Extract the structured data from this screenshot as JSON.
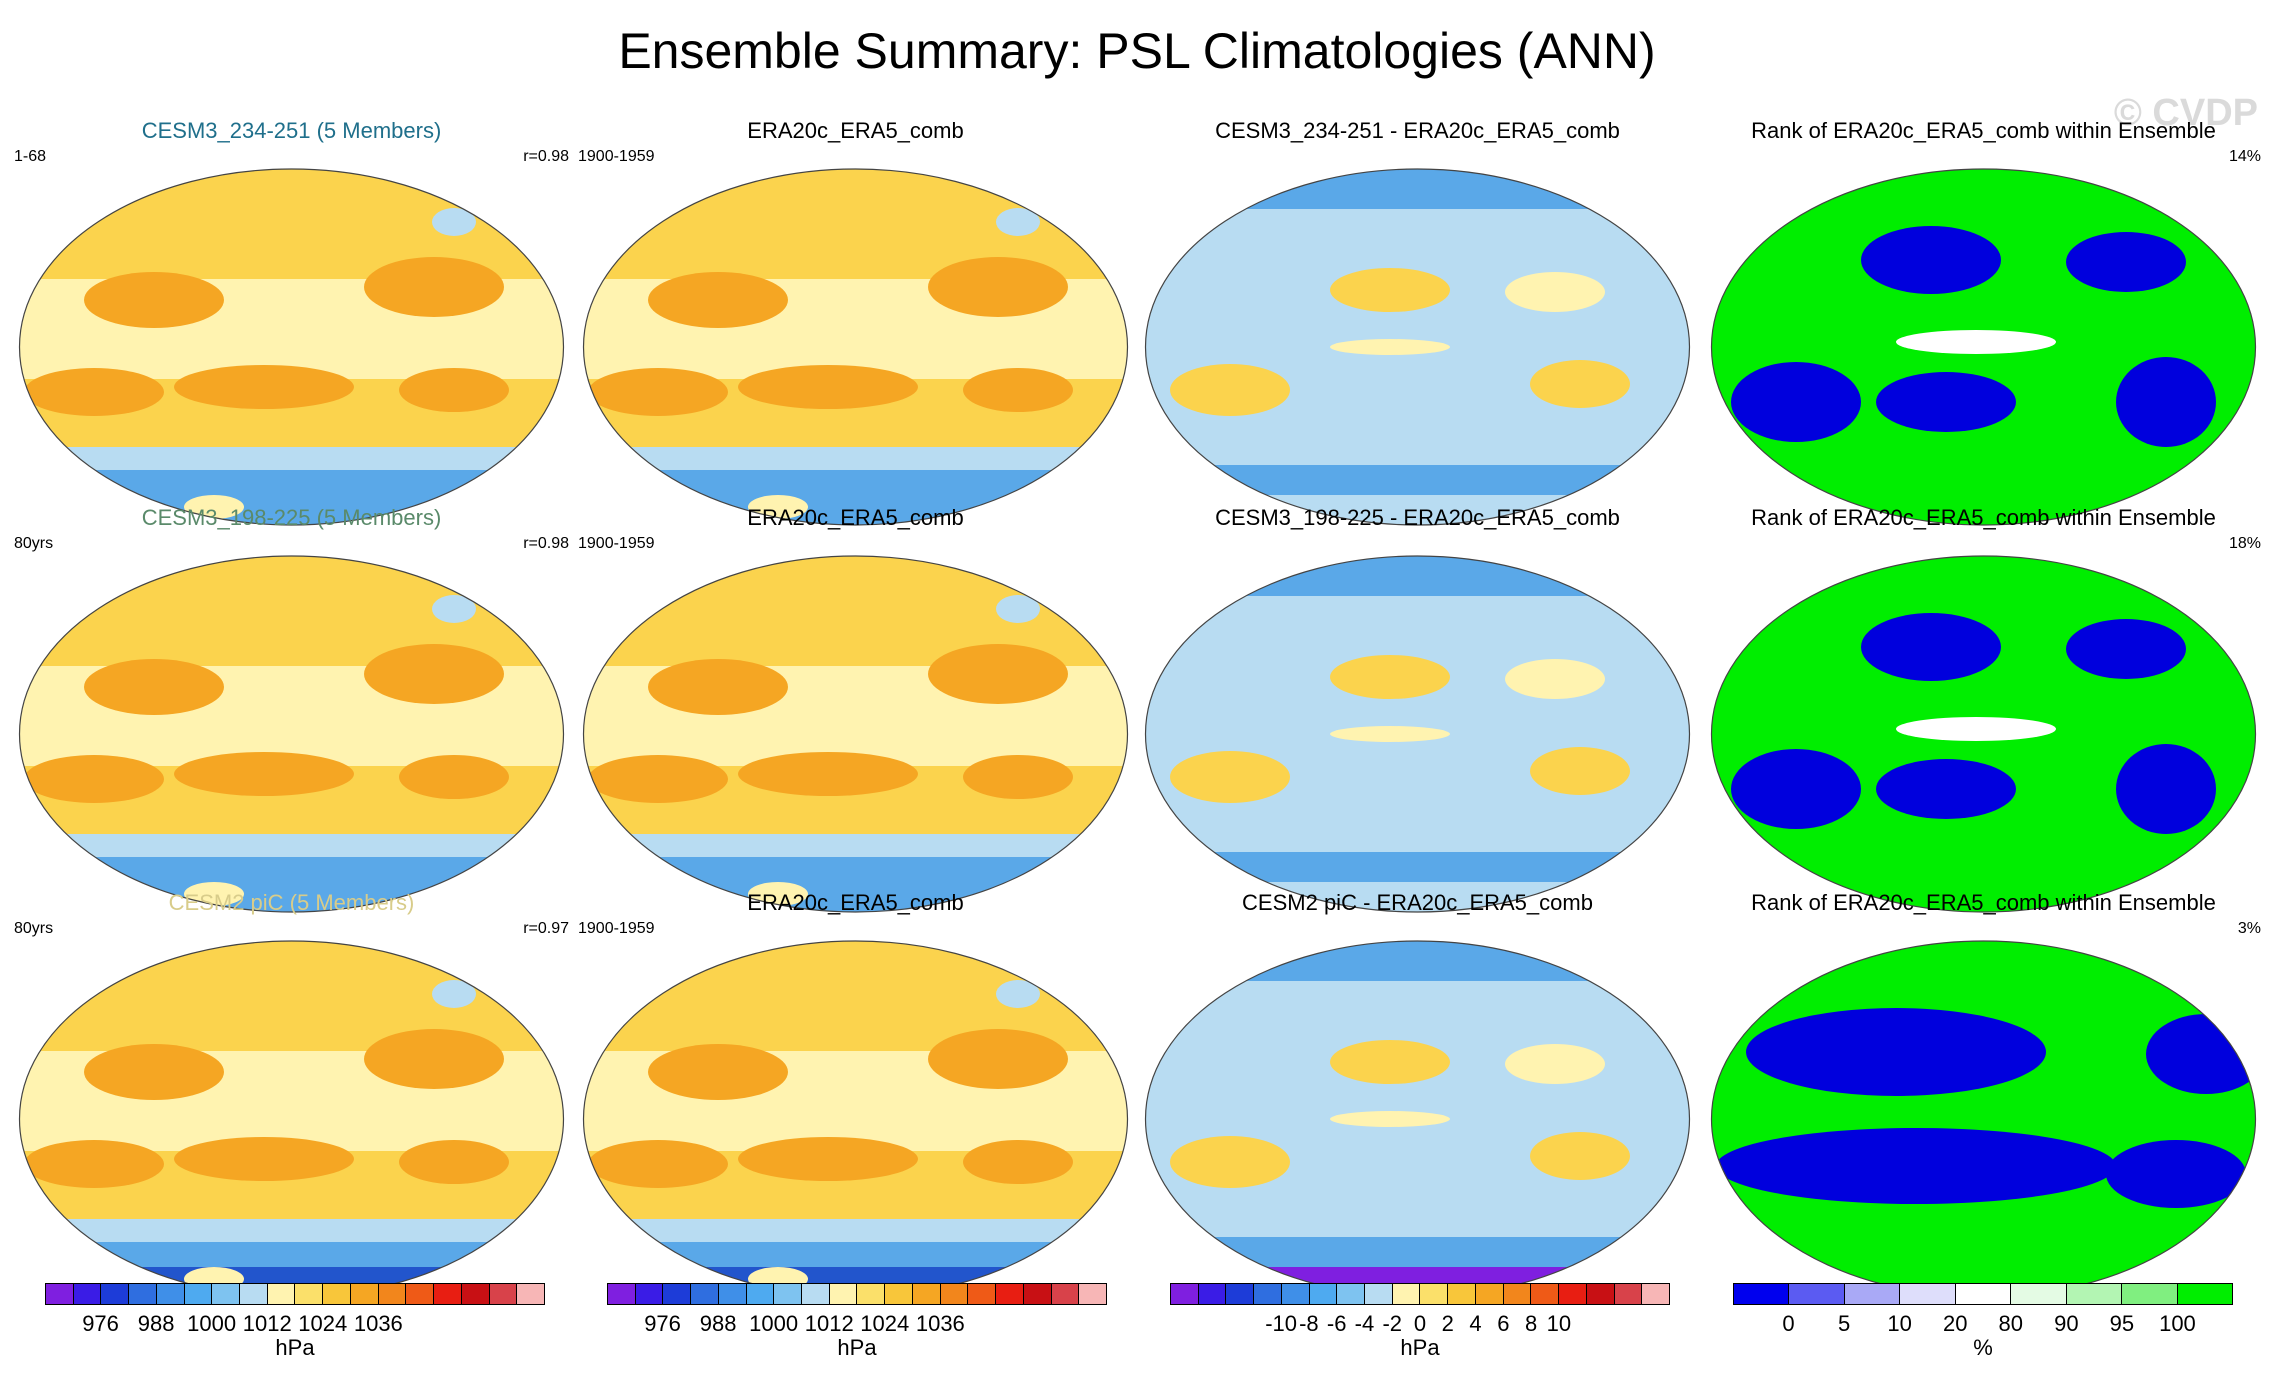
{
  "title": "Ensemble Summary: PSL Climatologies (ANN)",
  "watermark": "© CVDP",
  "colors": {
    "title_row1": "#1f6f8b",
    "title_row2": "#5a8a6a",
    "title_row3": "#d8cc8a",
    "rank_green": "#00ee00",
    "rank_blue": "#0000dd",
    "rank_white": "#ffffff",
    "warm_light": "#fff3b0",
    "warm_mid": "#fbd34d",
    "warm_orange": "#f5a623",
    "cool_light": "#b8dcf2",
    "cool_mid": "#5aa8e8",
    "cool_dark": "#2255cc"
  },
  "rows": [
    {
      "cells": [
        {
          "title": "CESM3_234-251 (5 Members)",
          "left": "1-68",
          "right": "r=0.98",
          "kind": "clim"
        },
        {
          "title": "ERA20c_ERA5_comb",
          "left": "1900-1959",
          "right": "",
          "kind": "clim"
        },
        {
          "title": "CESM3_234-251 - ERA20c_ERA5_comb",
          "left": "",
          "right": "",
          "kind": "diff"
        },
        {
          "title": "Rank of ERA20c_ERA5_comb within Ensemble",
          "left": "",
          "right": "14%",
          "kind": "rank"
        }
      ]
    },
    {
      "cells": [
        {
          "title": "CESM3_198-225 (5 Members)",
          "left": "80yrs",
          "right": "r=0.98",
          "kind": "clim"
        },
        {
          "title": "ERA20c_ERA5_comb",
          "left": "1900-1959",
          "right": "",
          "kind": "clim"
        },
        {
          "title": "CESM3_198-225 - ERA20c_ERA5_comb",
          "left": "",
          "right": "",
          "kind": "diff"
        },
        {
          "title": "Rank of ERA20c_ERA5_comb within Ensemble",
          "left": "",
          "right": "18%",
          "kind": "rank"
        }
      ]
    },
    {
      "cells": [
        {
          "title": "CESM2 piC (5 Members)",
          "left": "80yrs",
          "right": "r=0.97",
          "kind": "clim"
        },
        {
          "title": "ERA20c_ERA5_comb",
          "left": "1900-1959",
          "right": "",
          "kind": "clim"
        },
        {
          "title": "CESM2 piC - ERA20c_ERA5_comb",
          "left": "",
          "right": "",
          "kind": "diff"
        },
        {
          "title": "Rank of ERA20c_ERA5_comb within Ensemble",
          "left": "",
          "right": "3%",
          "kind": "rank"
        }
      ]
    }
  ],
  "colorbars": [
    {
      "unit": "hPa",
      "ticks": [
        "976",
        "988",
        "1000",
        "1012",
        "1024",
        "1036"
      ],
      "colors": [
        "#7f1fe0",
        "#3a1ce6",
        "#1d3cd8",
        "#2f6ee0",
        "#3f8fe8",
        "#4eaaf0",
        "#7ec3f0",
        "#b8dcf2",
        "#fff3b0",
        "#fbe06a",
        "#f8c63a",
        "#f5a623",
        "#f2861c",
        "#ef5a17",
        "#e81e12",
        "#c81014",
        "#d8424a",
        "#f7b6b6"
      ]
    },
    {
      "unit": "hPa",
      "ticks": [
        "976",
        "988",
        "1000",
        "1012",
        "1024",
        "1036"
      ],
      "colors": [
        "#7f1fe0",
        "#3a1ce6",
        "#1d3cd8",
        "#2f6ee0",
        "#3f8fe8",
        "#4eaaf0",
        "#7ec3f0",
        "#b8dcf2",
        "#fff3b0",
        "#fbe06a",
        "#f8c63a",
        "#f5a623",
        "#f2861c",
        "#ef5a17",
        "#e81e12",
        "#c81014",
        "#d8424a",
        "#f7b6b6"
      ]
    },
    {
      "unit": "hPa",
      "ticks": [
        "-10",
        "-8",
        "-6",
        "-4",
        "-2",
        "0",
        "2",
        "4",
        "6",
        "8",
        "10"
      ],
      "colors": [
        "#7f1fe0",
        "#3a1ce6",
        "#1d3cd8",
        "#2f6ee0",
        "#3f8fe8",
        "#4eaaf0",
        "#7ec3f0",
        "#b8dcf2",
        "#fff3b0",
        "#fbe06a",
        "#f8c63a",
        "#f5a623",
        "#f2861c",
        "#ef5a17",
        "#e81e12",
        "#c81014",
        "#d8424a",
        "#f7b6b6"
      ]
    },
    {
      "unit": "%",
      "ticks": [
        "0",
        "5",
        "10",
        "20",
        "80",
        "90",
        "95",
        "100"
      ],
      "colors": [
        "#0000ee",
        "#5b5bf2",
        "#a9a9f6",
        "#dedefb",
        "#ffffff",
        "#e4fbe4",
        "#b3f5b3",
        "#80ef80",
        "#00ee00"
      ]
    }
  ]
}
